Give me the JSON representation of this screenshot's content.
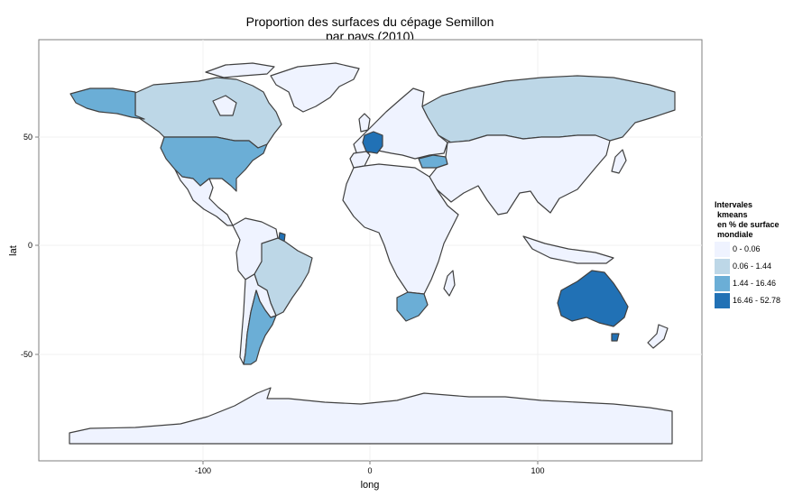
{
  "title_line1": "Proportion des surfaces du cépage Semillon",
  "title_line2": "par pays (2010)",
  "x_axis": {
    "label": "long",
    "ticks": [
      "-100",
      "0",
      "100"
    ]
  },
  "y_axis": {
    "label": "lat",
    "ticks": [
      "50",
      "0",
      "-50"
    ]
  },
  "legend": {
    "title_lines": [
      "Intervales",
      "kmeans",
      "en % de surface",
      "mondiale"
    ],
    "items": [
      {
        "label": "0 - 0.06",
        "color": "#eff3ff"
      },
      {
        "label": "0.06 - 1.44",
        "color": "#bdd7e7"
      },
      {
        "label": "1.44 - 16.46",
        "color": "#6baed6"
      },
      {
        "label": "16.46 - 52.78",
        "color": "#2171b5"
      }
    ]
  },
  "colors": {
    "panel_border": "#7f7f7f",
    "grid": "#f0f0f0",
    "country_border": "#404040",
    "ocean": "#ffffff"
  },
  "map_classes": [
    {
      "region": "France",
      "class": "16.46 - 52.78"
    },
    {
      "region": "Australia",
      "class": "16.46 - 52.78"
    },
    {
      "region": "French Guiana",
      "class": "16.46 - 52.78"
    },
    {
      "region": "Alaska (USA)",
      "class": "1.44 - 16.46"
    },
    {
      "region": "United States",
      "class": "1.44 - 16.46"
    },
    {
      "region": "Argentina",
      "class": "1.44 - 16.46"
    },
    {
      "region": "South Africa",
      "class": "1.44 - 16.46"
    },
    {
      "region": "Turkey",
      "class": "1.44 - 16.46"
    },
    {
      "region": "Canada",
      "class": "0.06 - 1.44"
    },
    {
      "region": "Brazil",
      "class": "0.06 - 1.44"
    },
    {
      "region": "Russia",
      "class": "0.06 - 1.44"
    },
    {
      "region": "Other countries",
      "class": "0 - 0.06"
    }
  ]
}
